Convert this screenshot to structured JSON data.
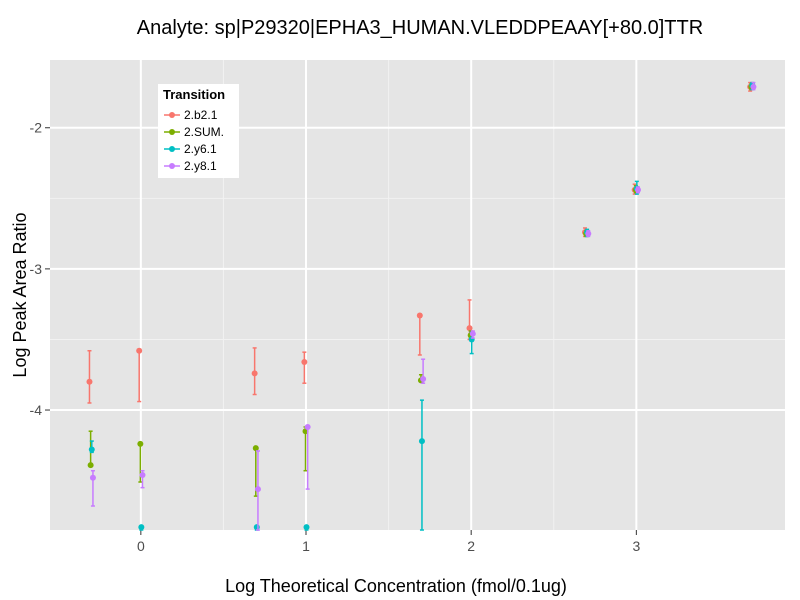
{
  "chart_data": {
    "type": "scatter",
    "title": "Analyte: sp|P29320|EPHA3_HUMAN.VLEDDPEAAY[+80.0]TTR",
    "xlabel": "Log Theoretical Concentration (fmol/0.1ug)",
    "ylabel": "Log Peak Area Ratio",
    "xlim": [
      -0.55,
      3.9
    ],
    "ylim": [
      -4.85,
      -1.52
    ],
    "x_ticks": [
      0,
      1,
      2,
      3
    ],
    "x_tick_labels": [
      "0",
      "1",
      "2",
      "3"
    ],
    "y_ticks": [
      -4,
      -3,
      -2
    ],
    "y_tick_labels": [
      "-4",
      "-3",
      "-2"
    ],
    "grid": true,
    "legend": {
      "title": "Transition",
      "position": "top-left"
    },
    "error_bars": true,
    "x_concentrations": [
      -0.301,
      0.0,
      0.699,
      1.0,
      1.699,
      2.0,
      2.699,
      3.0,
      3.699
    ],
    "series": [
      {
        "name": "2.b2.1",
        "color": "#F8766D",
        "points": [
          {
            "x": -0.311,
            "y": -3.8,
            "ymin": -3.95,
            "ymax": -3.58
          },
          {
            "x": -0.01,
            "y": -3.58,
            "ymin": -3.94,
            "ymax": -3.57
          },
          {
            "x": 0.689,
            "y": -3.74,
            "ymin": -3.89,
            "ymax": -3.56
          },
          {
            "x": 0.99,
            "y": -3.66,
            "ymin": -3.81,
            "ymax": -3.59
          },
          {
            "x": 1.689,
            "y": -3.33,
            "ymin": -3.61,
            "ymax": -3.32
          },
          {
            "x": 1.99,
            "y": -3.42,
            "ymin": -3.5,
            "ymax": -3.22
          },
          {
            "x": 2.689,
            "y": -2.74,
            "ymin": -2.77,
            "ymax": -2.71
          },
          {
            "x": 2.99,
            "y": -2.44,
            "ymin": -2.47,
            "ymax": -2.4
          },
          {
            "x": 3.689,
            "y": -1.71,
            "ymin": -1.74,
            "ymax": -1.68
          }
        ]
      },
      {
        "name": "2.SUM.",
        "color": "#7CAE00",
        "points": [
          {
            "x": -0.304,
            "y": -4.39,
            "ymin": -4.4,
            "ymax": -4.15
          },
          {
            "x": -0.003,
            "y": -4.24,
            "ymin": -4.51,
            "ymax": -4.24
          },
          {
            "x": 0.696,
            "y": -4.27,
            "ymin": -4.61,
            "ymax": -4.26
          },
          {
            "x": 0.997,
            "y": -4.15,
            "ymin": -4.43,
            "ymax": -4.12
          },
          {
            "x": 1.696,
            "y": -3.79,
            "ymin": -3.8,
            "ymax": -3.75
          },
          {
            "x": 1.997,
            "y": -3.47,
            "ymin": -3.49,
            "ymax": -3.44
          },
          {
            "x": 2.696,
            "y": -2.75,
            "ymin": -2.77,
            "ymax": -2.73
          },
          {
            "x": 2.997,
            "y": -2.44,
            "ymin": -2.46,
            "ymax": -2.41
          },
          {
            "x": 3.696,
            "y": -1.71,
            "ymin": -1.73,
            "ymax": -1.69
          }
        ]
      },
      {
        "name": "2.y6.1",
        "color": "#00BFC4",
        "points": [
          {
            "x": -0.297,
            "y": -4.28,
            "ymin": -4.3,
            "ymax": -4.22
          },
          {
            "x": 0.003,
            "y": -4.83,
            "ymin": -4.85,
            "ymax": -4.83
          },
          {
            "x": 0.702,
            "y": -4.83,
            "ymin": -4.85,
            "ymax": -4.83
          },
          {
            "x": 1.003,
            "y": -4.83,
            "ymin": -4.85,
            "ymax": -4.83
          },
          {
            "x": 1.702,
            "y": -4.22,
            "ymin": -4.85,
            "ymax": -3.93
          },
          {
            "x": 2.003,
            "y": -3.5,
            "ymin": -3.6,
            "ymax": -3.45
          },
          {
            "x": 2.702,
            "y": -2.74,
            "ymin": -2.77,
            "ymax": -2.72
          },
          {
            "x": 3.003,
            "y": -2.43,
            "ymin": -2.47,
            "ymax": -2.38
          },
          {
            "x": 3.702,
            "y": -1.7,
            "ymin": -1.73,
            "ymax": -1.68
          }
        ]
      },
      {
        "name": "2.y8.1",
        "color": "#C77CFF",
        "points": [
          {
            "x": -0.29,
            "y": -4.48,
            "ymin": -4.68,
            "ymax": -4.43
          },
          {
            "x": 0.01,
            "y": -4.46,
            "ymin": -4.55,
            "ymax": -4.43
          },
          {
            "x": 0.709,
            "y": -4.56,
            "ymin": -4.85,
            "ymax": -4.29
          },
          {
            "x": 1.01,
            "y": -4.12,
            "ymin": -4.56,
            "ymax": -4.11
          },
          {
            "x": 1.709,
            "y": -3.78,
            "ymin": -3.81,
            "ymax": -3.64
          },
          {
            "x": 2.01,
            "y": -3.46,
            "ymin": -3.49,
            "ymax": -3.44
          },
          {
            "x": 2.709,
            "y": -2.75,
            "ymin": -2.77,
            "ymax": -2.73
          },
          {
            "x": 3.01,
            "y": -2.44,
            "ymin": -2.46,
            "ymax": -2.42
          },
          {
            "x": 3.709,
            "y": -1.71,
            "ymin": -1.73,
            "ymax": -1.68
          }
        ]
      }
    ]
  }
}
